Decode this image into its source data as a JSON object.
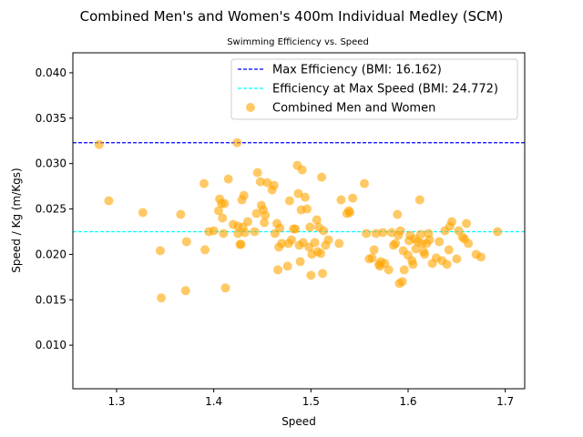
{
  "chart_data": {
    "type": "scatter",
    "title": "Combined Men's and Women's 400m Individual Medley (SCM)",
    "subtitle": "Swimming Efficiency vs. Speed",
    "xlabel": "Speed",
    "ylabel": "Speed / Kg (m/Kgs)",
    "xlim": [
      1.255,
      1.72
    ],
    "ylim": [
      0.0052,
      0.0422
    ],
    "xticks": [
      "1.3",
      "1.4",
      "1.5",
      "1.6",
      "1.7"
    ],
    "yticks": [
      "0.010",
      "0.015",
      "0.020",
      "0.025",
      "0.030",
      "0.035",
      "0.040"
    ],
    "grid": false,
    "legend_position": "top-right",
    "lines": [
      {
        "label": "Max Efficiency (BMI: 16.162)",
        "y": 0.0323,
        "color": "#0000ff",
        "style": "dashed"
      },
      {
        "label": "Efficiency at Max Speed (BMI: 24.772)",
        "y": 0.0225,
        "color": "#00ffff",
        "style": "dashed"
      }
    ],
    "series": [
      {
        "name": "Combined Men and Women",
        "color": "#ffa500",
        "points": [
          [
            1.282,
            0.0321
          ],
          [
            1.292,
            0.0259
          ],
          [
            1.327,
            0.0246
          ],
          [
            1.345,
            0.0204
          ],
          [
            1.346,
            0.0152
          ],
          [
            1.366,
            0.0244
          ],
          [
            1.371,
            0.016
          ],
          [
            1.372,
            0.0214
          ],
          [
            1.39,
            0.0278
          ],
          [
            1.391,
            0.0205
          ],
          [
            1.395,
            0.0225
          ],
          [
            1.4,
            0.0226
          ],
          [
            1.405,
            0.0248
          ],
          [
            1.406,
            0.0261
          ],
          [
            1.408,
            0.0256
          ],
          [
            1.409,
            0.024
          ],
          [
            1.41,
            0.0223
          ],
          [
            1.411,
            0.0256
          ],
          [
            1.412,
            0.0163
          ],
          [
            1.415,
            0.0283
          ],
          [
            1.42,
            0.0233
          ],
          [
            1.424,
            0.0323
          ],
          [
            1.425,
            0.0223
          ],
          [
            1.425,
            0.0231
          ],
          [
            1.427,
            0.0211
          ],
          [
            1.428,
            0.0211
          ],
          [
            1.429,
            0.026
          ],
          [
            1.43,
            0.023
          ],
          [
            1.431,
            0.0265
          ],
          [
            1.432,
            0.0224
          ],
          [
            1.435,
            0.0236
          ],
          [
            1.442,
            0.0225
          ],
          [
            1.444,
            0.0245
          ],
          [
            1.445,
            0.029
          ],
          [
            1.448,
            0.028
          ],
          [
            1.449,
            0.0254
          ],
          [
            1.451,
            0.0249
          ],
          [
            1.452,
            0.0235
          ],
          [
            1.453,
            0.0243
          ],
          [
            1.455,
            0.0279
          ],
          [
            1.46,
            0.0271
          ],
          [
            1.462,
            0.0276
          ],
          [
            1.463,
            0.0223
          ],
          [
            1.465,
            0.0234
          ],
          [
            1.466,
            0.0183
          ],
          [
            1.467,
            0.0208
          ],
          [
            1.468,
            0.0229
          ],
          [
            1.47,
            0.0212
          ],
          [
            1.476,
            0.0187
          ],
          [
            1.477,
            0.0212
          ],
          [
            1.478,
            0.0259
          ],
          [
            1.48,
            0.0216
          ],
          [
            1.482,
            0.0228
          ],
          [
            1.484,
            0.0228
          ],
          [
            1.486,
            0.0298
          ],
          [
            1.487,
            0.0267
          ],
          [
            1.488,
            0.021
          ],
          [
            1.489,
            0.0192
          ],
          [
            1.49,
            0.0249
          ],
          [
            1.491,
            0.0293
          ],
          [
            1.492,
            0.0213
          ],
          [
            1.494,
            0.0263
          ],
          [
            1.496,
            0.025
          ],
          [
            1.498,
            0.0208
          ],
          [
            1.499,
            0.023
          ],
          [
            1.5,
            0.0177
          ],
          [
            1.501,
            0.02
          ],
          [
            1.504,
            0.0213
          ],
          [
            1.506,
            0.0238
          ],
          [
            1.507,
            0.0203
          ],
          [
            1.508,
            0.023
          ],
          [
            1.51,
            0.0201
          ],
          [
            1.511,
            0.0285
          ],
          [
            1.512,
            0.0179
          ],
          [
            1.513,
            0.0226
          ],
          [
            1.515,
            0.021
          ],
          [
            1.518,
            0.0216
          ],
          [
            1.529,
            0.0212
          ],
          [
            1.531,
            0.026
          ],
          [
            1.537,
            0.0245
          ],
          [
            1.539,
            0.0248
          ],
          [
            1.54,
            0.0246
          ],
          [
            1.543,
            0.0262
          ],
          [
            1.555,
            0.0278
          ],
          [
            1.557,
            0.0223
          ],
          [
            1.56,
            0.0195
          ],
          [
            1.563,
            0.0196
          ],
          [
            1.565,
            0.0205
          ],
          [
            1.567,
            0.0223
          ],
          [
            1.57,
            0.0189
          ],
          [
            1.571,
            0.0187
          ],
          [
            1.572,
            0.0192
          ],
          [
            1.574,
            0.0224
          ],
          [
            1.576,
            0.019
          ],
          [
            1.58,
            0.0183
          ],
          [
            1.583,
            0.0224
          ],
          [
            1.585,
            0.021
          ],
          [
            1.587,
            0.0212
          ],
          [
            1.589,
            0.0244
          ],
          [
            1.59,
            0.0221
          ],
          [
            1.591,
            0.0168
          ],
          [
            1.592,
            0.0226
          ],
          [
            1.594,
            0.017
          ],
          [
            1.595,
            0.0204
          ],
          [
            1.596,
            0.0183
          ],
          [
            1.6,
            0.0199
          ],
          [
            1.601,
            0.0215
          ],
          [
            1.602,
            0.0221
          ],
          [
            1.604,
            0.0193
          ],
          [
            1.605,
            0.0189
          ],
          [
            1.607,
            0.0217
          ],
          [
            1.608,
            0.0206
          ],
          [
            1.61,
            0.0214
          ],
          [
            1.612,
            0.026
          ],
          [
            1.613,
            0.0222
          ],
          [
            1.614,
            0.0212
          ],
          [
            1.616,
            0.0203
          ],
          [
            1.617,
            0.02
          ],
          [
            1.619,
            0.0212
          ],
          [
            1.621,
            0.0223
          ],
          [
            1.622,
            0.0216
          ],
          [
            1.625,
            0.019
          ],
          [
            1.629,
            0.0196
          ],
          [
            1.632,
            0.0214
          ],
          [
            1.635,
            0.0193
          ],
          [
            1.638,
            0.0226
          ],
          [
            1.64,
            0.0189
          ],
          [
            1.642,
            0.0205
          ],
          [
            1.643,
            0.0231
          ],
          [
            1.645,
            0.0236
          ],
          [
            1.65,
            0.0195
          ],
          [
            1.652,
            0.0226
          ],
          [
            1.656,
            0.0219
          ],
          [
            1.658,
            0.0217
          ],
          [
            1.66,
            0.0234
          ],
          [
            1.662,
            0.0212
          ],
          [
            1.67,
            0.02
          ],
          [
            1.675,
            0.0197
          ],
          [
            1.692,
            0.0225
          ]
        ]
      }
    ]
  }
}
